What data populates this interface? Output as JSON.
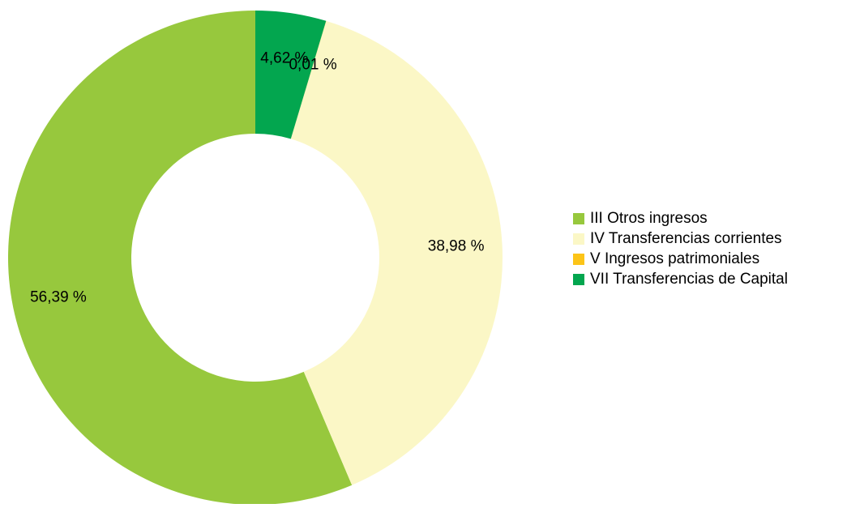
{
  "chart_data": {
    "type": "donut",
    "categories": [
      "III Otros ingresos",
      "IV Transferencias corrientes",
      "V  Ingresos patrimoniales",
      "VII Transferencias de Capital"
    ],
    "values": [
      56.39,
      38.98,
      0.01,
      4.62
    ],
    "value_labels": [
      "56,39 %",
      "38,98 %",
      "0,01 %",
      "4,62 %"
    ],
    "colors": [
      "#97c83d",
      "#fbf7c6",
      "#fcc418",
      "#03a64f"
    ],
    "legend": "right"
  }
}
